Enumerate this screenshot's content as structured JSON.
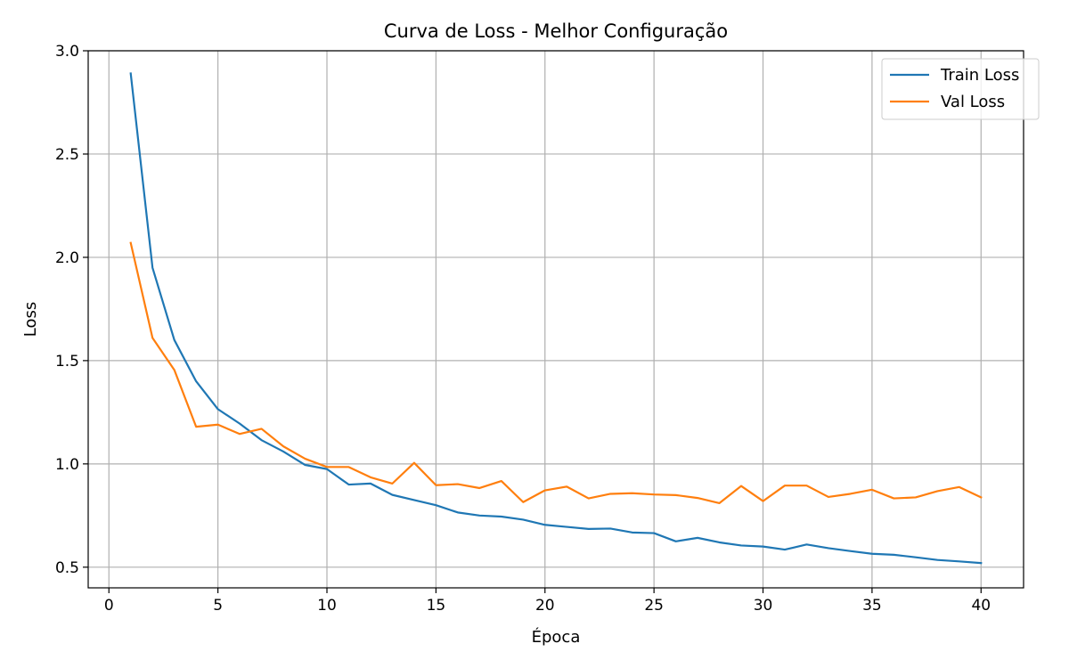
{
  "chart_data": {
    "type": "line",
    "title": "Curva de Loss - Melhor Configuração",
    "xlabel": "Época",
    "ylabel": "Loss",
    "xlim": [
      -0.95,
      41.95
    ],
    "ylim": [
      0.4,
      3.0
    ],
    "xticks": [
      0,
      5,
      10,
      15,
      20,
      25,
      30,
      35,
      40
    ],
    "yticks": [
      0.5,
      1.0,
      1.5,
      2.0,
      2.5,
      3.0
    ],
    "xtick_labels": [
      "0",
      "5",
      "10",
      "15",
      "20",
      "25",
      "30",
      "35",
      "40"
    ],
    "ytick_labels": [
      "0.5",
      "1.0",
      "1.5",
      "2.0",
      "2.5",
      "3.0"
    ],
    "grid": true,
    "legend_position": "top-right",
    "x": [
      1,
      2,
      3,
      4,
      5,
      6,
      7,
      8,
      9,
      10,
      11,
      12,
      13,
      14,
      15,
      16,
      17,
      18,
      19,
      20,
      21,
      22,
      23,
      24,
      25,
      26,
      27,
      28,
      29,
      30,
      31,
      32,
      33,
      34,
      35,
      36,
      37,
      38,
      39,
      40
    ],
    "series": [
      {
        "name": "Train Loss",
        "color": "#1f77b4",
        "values": [
          2.89,
          1.95,
          1.6,
          1.4,
          1.265,
          1.195,
          1.115,
          1.06,
          0.995,
          0.975,
          0.9,
          0.905,
          0.85,
          0.825,
          0.8,
          0.765,
          0.75,
          0.745,
          0.73,
          0.705,
          0.695,
          0.685,
          0.687,
          0.668,
          0.665,
          0.625,
          0.642,
          0.62,
          0.605,
          0.6,
          0.585,
          0.61,
          0.592,
          0.578,
          0.565,
          0.56,
          0.548,
          0.535,
          0.528,
          0.52
        ]
      },
      {
        "name": "Val Loss",
        "color": "#ff7f0e",
        "values": [
          2.07,
          1.61,
          1.455,
          1.18,
          1.19,
          1.145,
          1.17,
          1.085,
          1.025,
          0.985,
          0.985,
          0.935,
          0.905,
          1.005,
          0.897,
          0.902,
          0.883,
          0.917,
          0.815,
          0.872,
          0.89,
          0.833,
          0.855,
          0.858,
          0.852,
          0.849,
          0.835,
          0.81,
          0.893,
          0.82,
          0.895,
          0.895,
          0.84,
          0.855,
          0.875,
          0.833,
          0.838,
          0.868,
          0.888,
          0.838
        ]
      }
    ]
  }
}
